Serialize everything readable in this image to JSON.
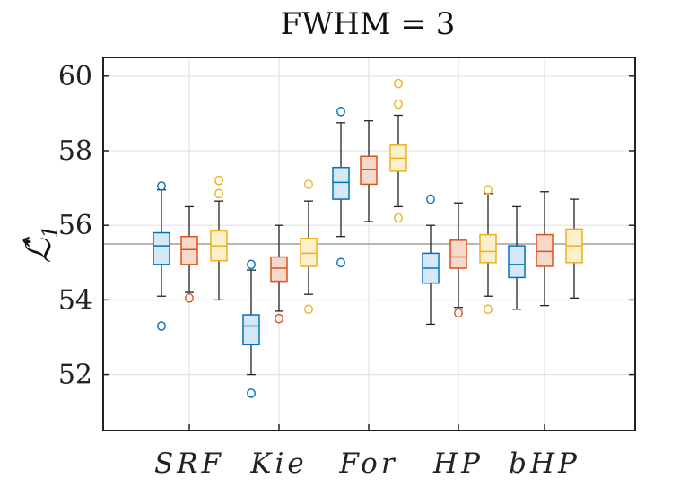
{
  "chart_data": {
    "type": "box",
    "title": "FWHM = 3",
    "ylabel": "ℒ̂",
    "ylabel_subscript": "1",
    "xlabel": "",
    "ylim": [
      50.5,
      60.5
    ],
    "yticks": [
      52,
      54,
      56,
      58,
      60
    ],
    "grid": true,
    "reference_line": 55.5,
    "categories": [
      "SRF",
      "Kie",
      "For",
      "HP",
      "bHP"
    ],
    "series": [
      {
        "color": "#0072BD",
        "fill": "#d6e8f5",
        "boxes": [
          {
            "whisker_low": 54.1,
            "q1": 54.95,
            "median": 55.45,
            "q3": 55.8,
            "whisker_high": 56.95,
            "outliers": [
              57.05,
              53.3
            ]
          },
          {
            "whisker_low": 52.0,
            "q1": 52.8,
            "median": 53.3,
            "q3": 53.6,
            "whisker_high": 54.8,
            "outliers": [
              54.95,
              51.5
            ]
          },
          {
            "whisker_low": 55.7,
            "q1": 56.7,
            "median": 57.15,
            "q3": 57.55,
            "whisker_high": 58.75,
            "outliers": [
              59.05,
              55.0
            ]
          },
          {
            "whisker_low": 53.35,
            "q1": 54.45,
            "median": 54.85,
            "q3": 55.25,
            "whisker_high": 56.0,
            "outliers": [
              56.7
            ]
          },
          {
            "whisker_low": 53.75,
            "q1": 54.6,
            "median": 54.95,
            "q3": 55.45,
            "whisker_high": 56.5,
            "outliers": []
          }
        ]
      },
      {
        "color": "#D95319",
        "fill": "#f7d9cc",
        "boxes": [
          {
            "whisker_low": 54.2,
            "q1": 54.95,
            "median": 55.35,
            "q3": 55.7,
            "whisker_high": 56.5,
            "outliers": [
              54.05
            ]
          },
          {
            "whisker_low": 53.7,
            "q1": 54.5,
            "median": 54.85,
            "q3": 55.15,
            "whisker_high": 56.0,
            "outliers": [
              53.5
            ]
          },
          {
            "whisker_low": 56.1,
            "q1": 57.1,
            "median": 57.5,
            "q3": 57.85,
            "whisker_high": 58.8,
            "outliers": []
          },
          {
            "whisker_low": 53.8,
            "q1": 54.85,
            "median": 55.15,
            "q3": 55.6,
            "whisker_high": 56.6,
            "outliers": [
              53.65
            ]
          },
          {
            "whisker_low": 53.85,
            "q1": 54.9,
            "median": 55.3,
            "q3": 55.75,
            "whisker_high": 56.9,
            "outliers": []
          }
        ]
      },
      {
        "color": "#EDB120",
        "fill": "#fbefcc",
        "boxes": [
          {
            "whisker_low": 54.0,
            "q1": 55.05,
            "median": 55.45,
            "q3": 55.85,
            "whisker_high": 56.65,
            "outliers": [
              57.2,
              56.85
            ]
          },
          {
            "whisker_low": 54.15,
            "q1": 54.9,
            "median": 55.25,
            "q3": 55.65,
            "whisker_high": 56.65,
            "outliers": [
              57.1,
              53.75
            ]
          },
          {
            "whisker_low": 56.5,
            "q1": 57.45,
            "median": 57.8,
            "q3": 58.15,
            "whisker_high": 58.95,
            "outliers": [
              59.8,
              59.25,
              56.2
            ]
          },
          {
            "whisker_low": 54.1,
            "q1": 55.0,
            "median": 55.3,
            "q3": 55.75,
            "whisker_high": 56.85,
            "outliers": [
              56.95,
              53.75
            ]
          },
          {
            "whisker_low": 54.05,
            "q1": 55.0,
            "median": 55.45,
            "q3": 55.9,
            "whisker_high": 56.7,
            "outliers": []
          }
        ]
      }
    ]
  }
}
